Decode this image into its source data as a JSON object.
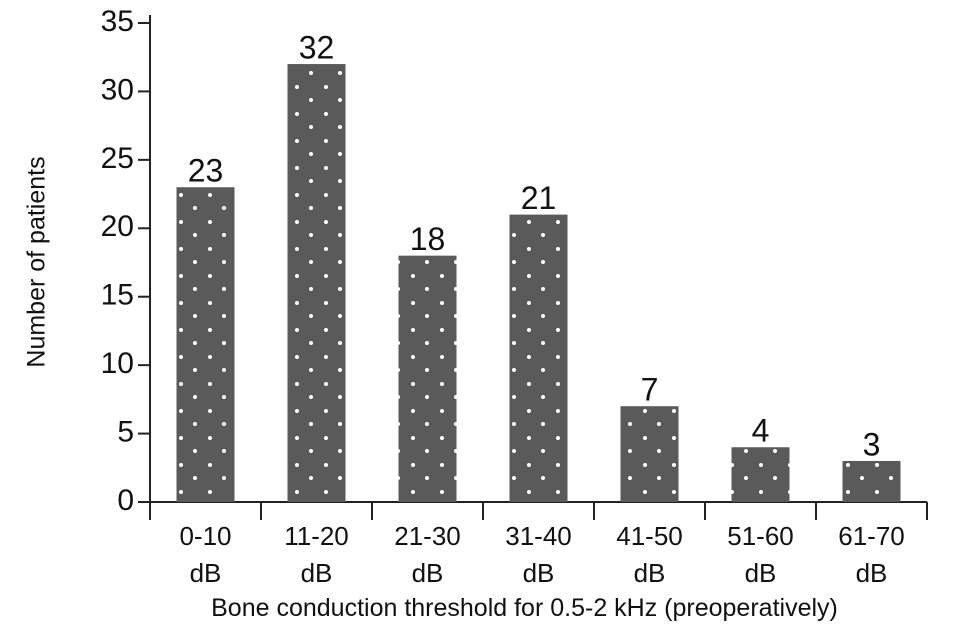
{
  "chart_data": {
    "type": "bar",
    "categories": [
      "0-10 dB",
      "11-20 dB",
      "21-30 dB",
      "31-40 dB",
      "41-50 dB",
      "51-60 dB",
      "61-70 dB"
    ],
    "values": [
      23,
      32,
      18,
      21,
      7,
      4,
      3
    ],
    "color": "#5a5a5a",
    "ylabel": "Number of patients",
    "xlabel": "Bone conduction threshold for 0.5-2 kHz (preoperatively)",
    "ylim": [
      0,
      35
    ],
    "yticks": [
      0,
      5,
      10,
      15,
      20,
      25,
      30,
      35
    ],
    "grid": false
  }
}
